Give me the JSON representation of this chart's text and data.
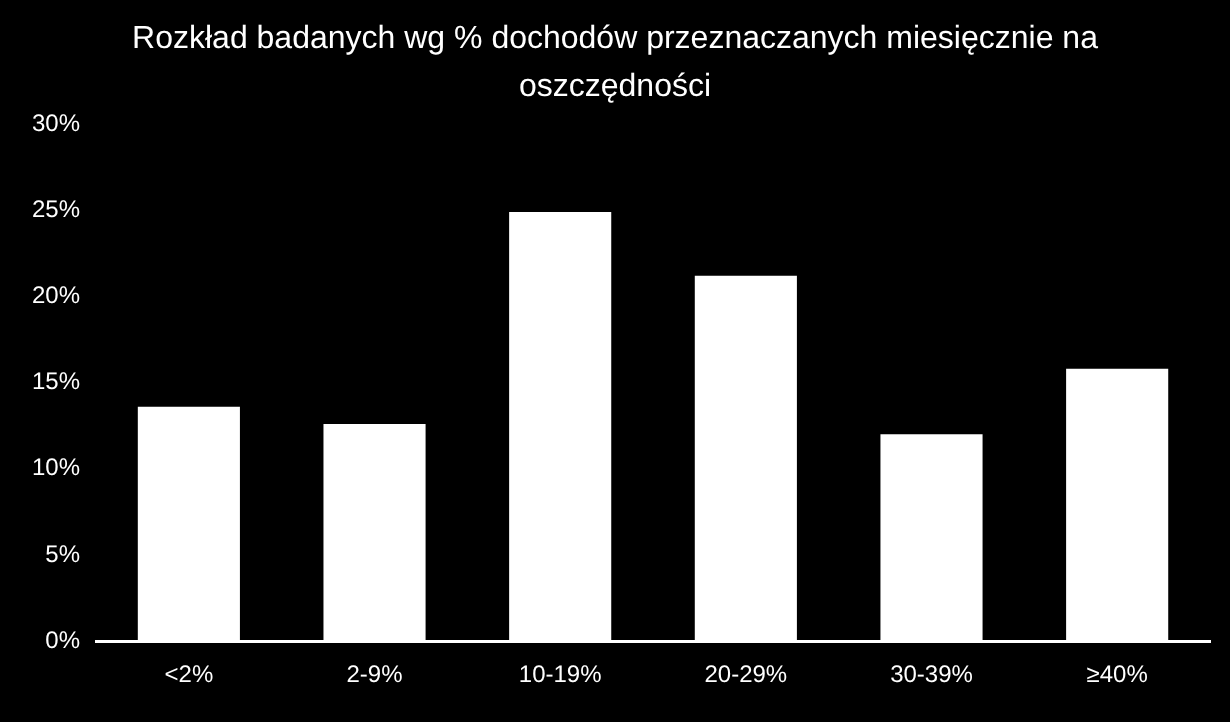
{
  "chart_data": {
    "type": "bar",
    "title": "Rozkład badanych wg % dochodów  przeznaczanych miesięcznie na oszczędności",
    "categories": [
      "<2%",
      "2-9%",
      "10-19%",
      "20-29%",
      "30-39%",
      "≥40%"
    ],
    "values": [
      13.6,
      12.6,
      24.9,
      21.2,
      12.0,
      15.8
    ],
    "color": "#ffffff",
    "ylim": [
      0,
      30
    ],
    "yticks": [
      {
        "value": 0,
        "label": "0%"
      },
      {
        "value": 5,
        "label": "5%"
      },
      {
        "value": 10,
        "label": "10%"
      },
      {
        "value": 15,
        "label": "15%"
      },
      {
        "value": 20,
        "label": "20%"
      },
      {
        "value": 25,
        "label": "25%"
      },
      {
        "value": 30,
        "label": "30%"
      }
    ],
    "grid": false,
    "legend": false
  }
}
